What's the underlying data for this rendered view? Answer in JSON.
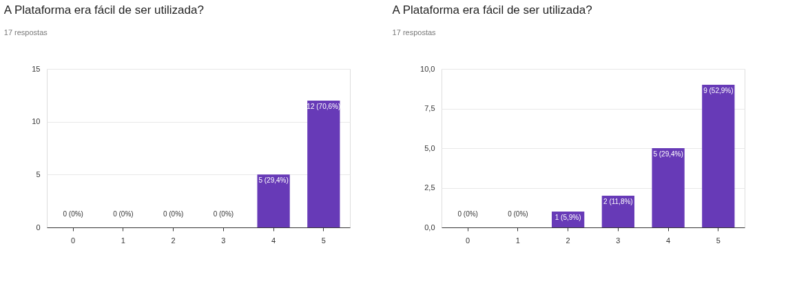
{
  "chart_data": [
    {
      "type": "bar",
      "title": "A Plataforma era fácil de ser utilizada?",
      "subtitle": "17 respostas",
      "categories": [
        "0",
        "1",
        "2",
        "3",
        "4",
        "5"
      ],
      "values": [
        0,
        0,
        0,
        0,
        5,
        12
      ],
      "color": "#673ab7",
      "value_labels": [
        "0 (0%)",
        "0 (0%)",
        "0 (0%)",
        "0 (0%)",
        "5 (29,4%)",
        "12 (70,6%)"
      ],
      "ylim": [
        0,
        15
      ],
      "yticks": [
        0,
        5,
        10,
        15
      ],
      "grid": "y"
    },
    {
      "type": "bar",
      "title": "A Plataforma era fácil de ser utilizada?",
      "subtitle": "17 respostas",
      "categories": [
        "0",
        "1",
        "2",
        "3",
        "4",
        "5"
      ],
      "values": [
        0,
        0,
        1,
        2,
        5,
        9
      ],
      "color": "#673ab7",
      "value_labels": [
        "0 (0%)",
        "0 (0%)",
        "1 (5,9%)",
        "2 (11,8%)",
        "5 (29,4%)",
        "9 (52,9%)"
      ],
      "ylim": [
        0,
        10
      ],
      "yticks": [
        {
          "value": 0,
          "label": "0,0"
        },
        {
          "value": 2.5,
          "label": "2,5"
        },
        {
          "value": 5,
          "label": "5,0"
        },
        {
          "value": 7.5,
          "label": "7,5"
        },
        {
          "value": 10,
          "label": "10,0"
        }
      ],
      "grid": "y"
    }
  ]
}
